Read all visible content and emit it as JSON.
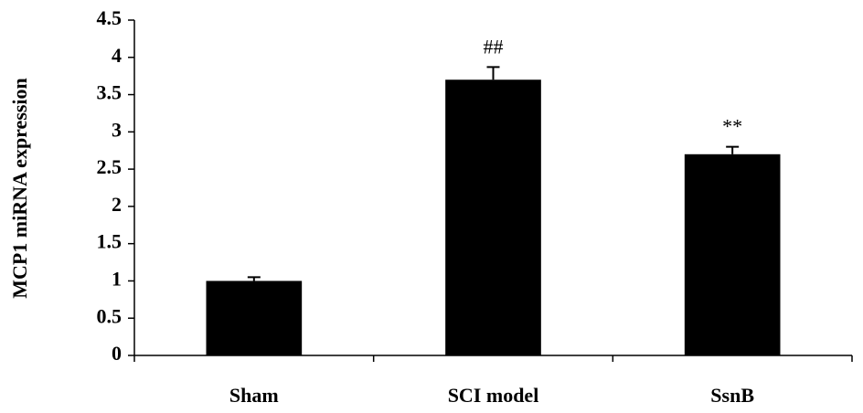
{
  "chart_data": {
    "type": "bar",
    "ylabel": "MCP1 miRNA expression",
    "categories": [
      "Sham",
      "SCI model",
      "SsnB"
    ],
    "values": [
      1.0,
      3.7,
      2.7
    ],
    "errors": [
      0.05,
      0.17,
      0.1
    ],
    "annotations": [
      null,
      "##",
      "**"
    ],
    "color": "#000000",
    "ylim": [
      0,
      4.5
    ],
    "yticks": [
      0,
      0.5,
      1,
      1.5,
      2,
      2.5,
      3,
      3.5,
      4,
      4.5
    ],
    "grid": false
  }
}
